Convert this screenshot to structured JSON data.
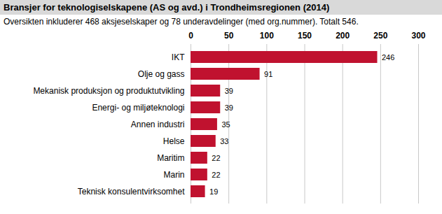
{
  "chart_data": {
    "type": "bar",
    "title": "Bransjer for teknologiselskapene (AS og avd.) i Trondheimsregionen (2014)",
    "subtitle": "Oversikten inkluderer 468 aksjeselskaper og 78 underavdelinger (med org.nummer). Totalt 546.",
    "orientation": "horizontal",
    "categories": [
      "IKT",
      "Olje og gass",
      "Mekanisk produksjon og produktutvikling",
      "Energi- og miljøteknologi",
      "Annen industri",
      "Helse",
      "Maritim",
      "Marin",
      "Teknisk konsulentvirksomhet"
    ],
    "values": [
      246,
      91,
      39,
      39,
      35,
      33,
      22,
      22,
      19
    ],
    "color": "#c0122f",
    "xlim": [
      0,
      300
    ],
    "xticks": [
      0,
      50,
      100,
      150,
      200,
      250,
      300
    ],
    "grid": true,
    "data_labels": true
  }
}
